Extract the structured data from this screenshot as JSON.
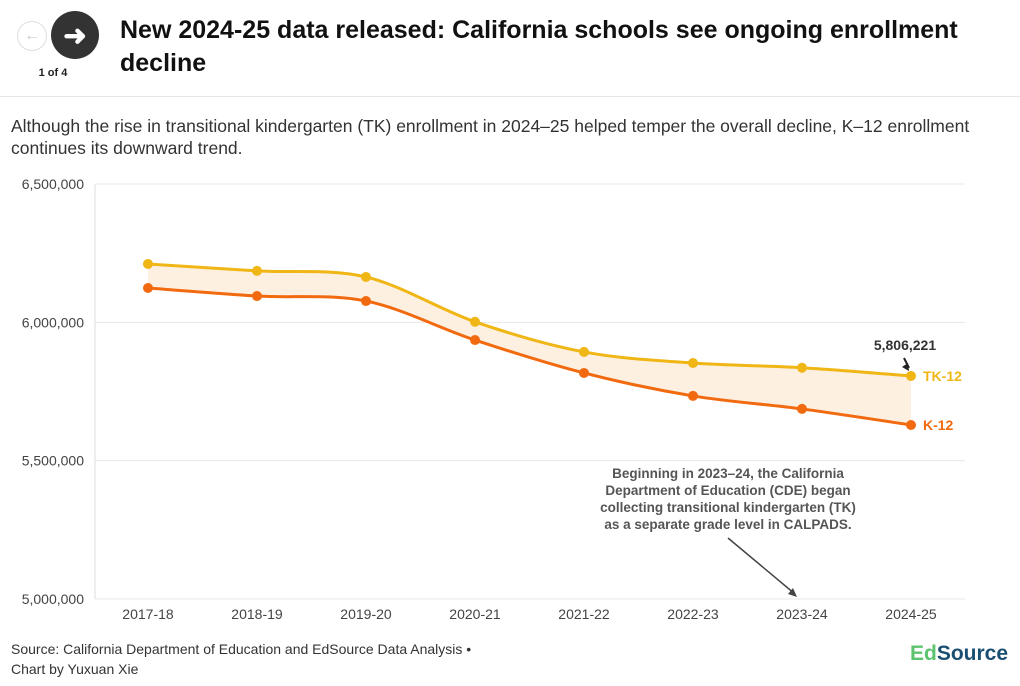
{
  "header": {
    "title": "New 2024-25 data released: California schools see ongoing enrollment decline",
    "pager": "1 of 4",
    "prev_icon": "arrow-left-icon",
    "next_icon": "arrow-right-icon"
  },
  "subtitle": "Although the rise in transitional kindergarten (TK) enrollment in 2024–25 helped temper the overall decline, K–12 enrollment continues its downward trend.",
  "chart_data": {
    "type": "line",
    "categories": [
      "2017-18",
      "2018-19",
      "2019-20",
      "2020-21",
      "2021-22",
      "2022-23",
      "2023-24",
      "2024-25"
    ],
    "series": [
      {
        "name": "TK-12",
        "color": "#f0b616",
        "values": [
          6211000,
          6186000,
          6164000,
          6002000,
          5893000,
          5853000,
          5836000,
          5806221
        ]
      },
      {
        "name": "K-12",
        "color": "#f26a10",
        "values": [
          6124000,
          6095000,
          6077000,
          5936000,
          5817000,
          5734000,
          5687000,
          5629000
        ]
      }
    ],
    "band_fill": "#fdf0e0",
    "ylim": [
      5000000,
      6500000
    ],
    "yticks": [
      {
        "v": 5000000,
        "label": "5,000,000"
      },
      {
        "v": 5500000,
        "label": "5,500,000"
      },
      {
        "v": 6000000,
        "label": "6,000,000"
      },
      {
        "v": 6500000,
        "label": "6,500,000"
      }
    ],
    "grid": true,
    "callout_value": "5,806,221",
    "annotation": [
      "Beginning in 2023–24, the California",
      "Department of Education (CDE) began",
      "collecting transitional kindergarten (TK)",
      "as a separate grade level in CALPADS."
    ]
  },
  "footer": {
    "source_line1": "Source: California Department of Education and EdSource Data Analysis •",
    "source_line2": "Chart by Yuxuan Xie",
    "logo_a": "Ed",
    "logo_b": "Source"
  }
}
